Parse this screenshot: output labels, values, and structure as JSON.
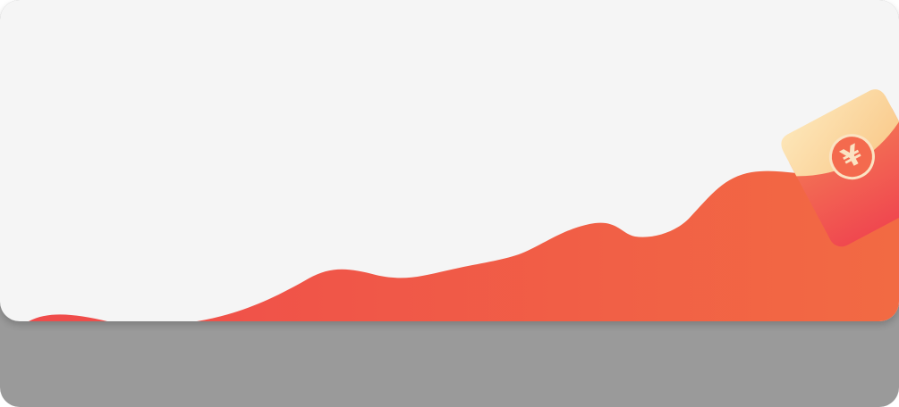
{
  "colors": {
    "card_background": "#f5f5f5",
    "base_background": "#9a9a9a",
    "wave_start": "#ef4b4b",
    "wave_end": "#f26a43",
    "envelope_top": "#fcd9a0",
    "envelope_body_top": "#f47a56",
    "envelope_body_bottom": "#f0484f",
    "coin_fill": "#f46a4e",
    "coin_symbol": "#fbe3c2"
  },
  "icons": {
    "envelope": "red-envelope-icon",
    "coin": "yuan-coin-icon"
  },
  "envelope": {
    "currency_symbol": "¥"
  }
}
